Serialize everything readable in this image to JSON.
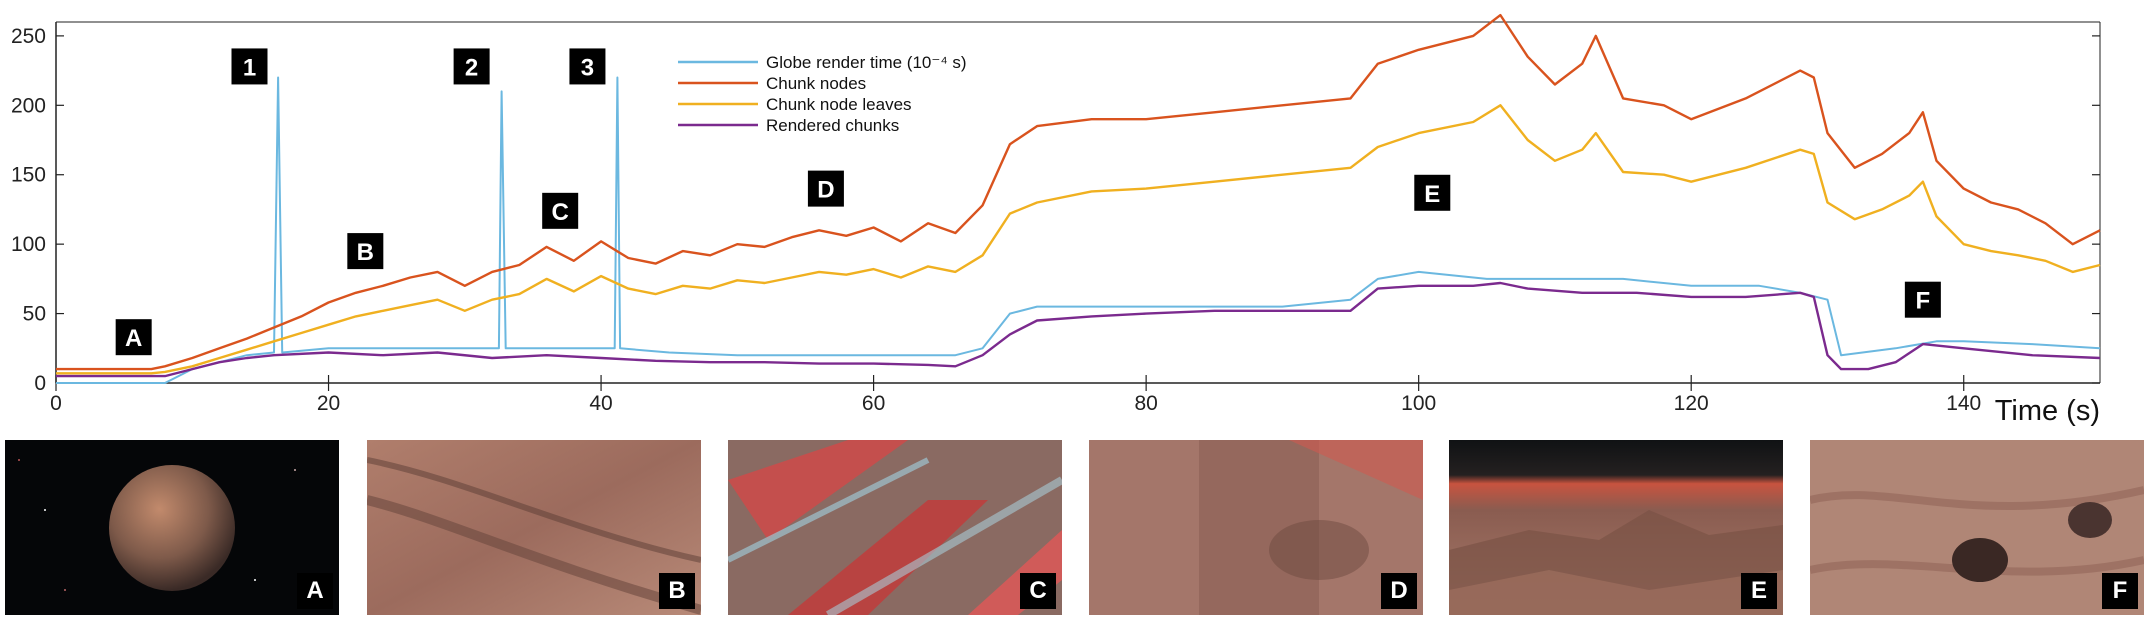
{
  "chart_data": {
    "type": "line",
    "xlabel": "Time (s)",
    "ylabel": "",
    "xlim": [
      0,
      150
    ],
    "ylim": [
      0,
      260
    ],
    "x_ticks": [
      0,
      20,
      40,
      60,
      80,
      100,
      120,
      140
    ],
    "y_ticks": [
      0,
      50,
      100,
      150,
      200,
      250
    ],
    "legend_position": "top-center",
    "series": [
      {
        "name": "Globe render time (10⁻⁴ s)",
        "color": "#6bb8e0",
        "x": [
          0,
          8,
          10,
          12,
          14,
          16,
          16.3,
          16.6,
          20,
          25,
          30,
          32.5,
          32.7,
          33,
          38,
          41,
          41.2,
          41.4,
          45,
          50,
          55,
          60,
          66,
          68,
          70,
          72,
          75,
          80,
          85,
          90,
          95,
          97,
          100,
          105,
          110,
          115,
          120,
          125,
          128,
          130,
          131,
          135,
          138,
          140,
          145,
          150
        ],
        "values": [
          0,
          0,
          10,
          15,
          20,
          22,
          220,
          22,
          25,
          25,
          25,
          25,
          210,
          25,
          25,
          25,
          220,
          25,
          22,
          20,
          20,
          20,
          20,
          25,
          50,
          55,
          55,
          55,
          55,
          55,
          60,
          75,
          80,
          75,
          75,
          75,
          70,
          70,
          65,
          60,
          20,
          25,
          30,
          30,
          28,
          25
        ]
      },
      {
        "name": "Chunk nodes",
        "color": "#d9531e",
        "x": [
          0,
          7,
          8,
          10,
          12,
          14,
          16,
          18,
          20,
          22,
          24,
          26,
          28,
          30,
          32,
          34,
          36,
          38,
          40,
          42,
          44,
          46,
          48,
          50,
          52,
          54,
          56,
          58,
          60,
          62,
          64,
          66,
          68,
          70,
          72,
          76,
          80,
          85,
          90,
          95,
          97,
          100,
          104,
          106,
          108,
          110,
          112,
          113,
          115,
          118,
          120,
          124,
          128,
          129,
          130,
          132,
          134,
          136,
          137,
          138,
          140,
          142,
          144,
          146,
          148,
          150
        ],
        "values": [
          10,
          10,
          12,
          18,
          25,
          32,
          40,
          48,
          58,
          65,
          70,
          76,
          80,
          70,
          80,
          85,
          98,
          88,
          102,
          90,
          86,
          95,
          92,
          100,
          98,
          105,
          110,
          106,
          112,
          102,
          115,
          108,
          128,
          172,
          185,
          190,
          190,
          195,
          200,
          205,
          230,
          240,
          250,
          265,
          235,
          215,
          230,
          250,
          205,
          200,
          190,
          205,
          225,
          220,
          180,
          155,
          165,
          180,
          195,
          160,
          140,
          130,
          125,
          115,
          100,
          110
        ]
      },
      {
        "name": "Chunk node leaves",
        "color": "#f0b020",
        "x": [
          0,
          7,
          8,
          10,
          12,
          14,
          16,
          18,
          20,
          22,
          24,
          26,
          28,
          30,
          32,
          34,
          36,
          38,
          40,
          42,
          44,
          46,
          48,
          50,
          52,
          54,
          56,
          58,
          60,
          62,
          64,
          66,
          68,
          70,
          72,
          76,
          80,
          85,
          90,
          95,
          97,
          100,
          104,
          106,
          108,
          110,
          112,
          113,
          115,
          118,
          120,
          124,
          128,
          129,
          130,
          132,
          134,
          136,
          137,
          138,
          140,
          142,
          144,
          146,
          148,
          150
        ],
        "values": [
          7,
          7,
          8,
          12,
          18,
          24,
          30,
          36,
          42,
          48,
          52,
          56,
          60,
          52,
          60,
          64,
          75,
          66,
          77,
          68,
          64,
          70,
          68,
          74,
          72,
          76,
          80,
          78,
          82,
          76,
          84,
          80,
          92,
          122,
          130,
          138,
          140,
          145,
          150,
          155,
          170,
          180,
          188,
          200,
          175,
          160,
          168,
          180,
          152,
          150,
          145,
          155,
          168,
          165,
          130,
          118,
          125,
          135,
          145,
          120,
          100,
          95,
          92,
          88,
          80,
          85
        ]
      },
      {
        "name": "Rendered chunks",
        "color": "#7b2a8e",
        "x": [
          0,
          8,
          10,
          12,
          14,
          16,
          20,
          24,
          28,
          32,
          36,
          40,
          44,
          48,
          52,
          56,
          60,
          64,
          66,
          68,
          70,
          72,
          76,
          80,
          85,
          90,
          95,
          97,
          100,
          104,
          106,
          108,
          112,
          116,
          120,
          124,
          128,
          129,
          130,
          131,
          133,
          135,
          137,
          140,
          145,
          150
        ],
        "values": [
          5,
          5,
          10,
          15,
          18,
          20,
          22,
          20,
          22,
          18,
          20,
          18,
          16,
          15,
          15,
          14,
          14,
          13,
          12,
          20,
          35,
          45,
          48,
          50,
          52,
          52,
          52,
          68,
          70,
          70,
          72,
          68,
          65,
          65,
          62,
          62,
          65,
          62,
          20,
          10,
          10,
          15,
          28,
          25,
          20,
          18
        ]
      }
    ],
    "markers": [
      {
        "label": "1",
        "x": 14.2,
        "y": 228
      },
      {
        "label": "2",
        "x": 30.5,
        "y": 228
      },
      {
        "label": "3",
        "x": 39,
        "y": 228
      },
      {
        "label": "A",
        "x": 5.7,
        "y": 33
      },
      {
        "label": "B",
        "x": 22.7,
        "y": 95
      },
      {
        "label": "C",
        "x": 37,
        "y": 124
      },
      {
        "label": "D",
        "x": 56.5,
        "y": 140
      },
      {
        "label": "E",
        "x": 101,
        "y": 137
      },
      {
        "label": "F",
        "x": 137,
        "y": 60
      }
    ]
  },
  "thumbnails": [
    {
      "label": "A",
      "kind": "planet"
    },
    {
      "label": "B",
      "kind": "terrain"
    },
    {
      "label": "C",
      "kind": "canyon"
    },
    {
      "label": "D",
      "kind": "surface"
    },
    {
      "label": "E",
      "kind": "landscape"
    },
    {
      "label": "F",
      "kind": "dunes"
    }
  ]
}
